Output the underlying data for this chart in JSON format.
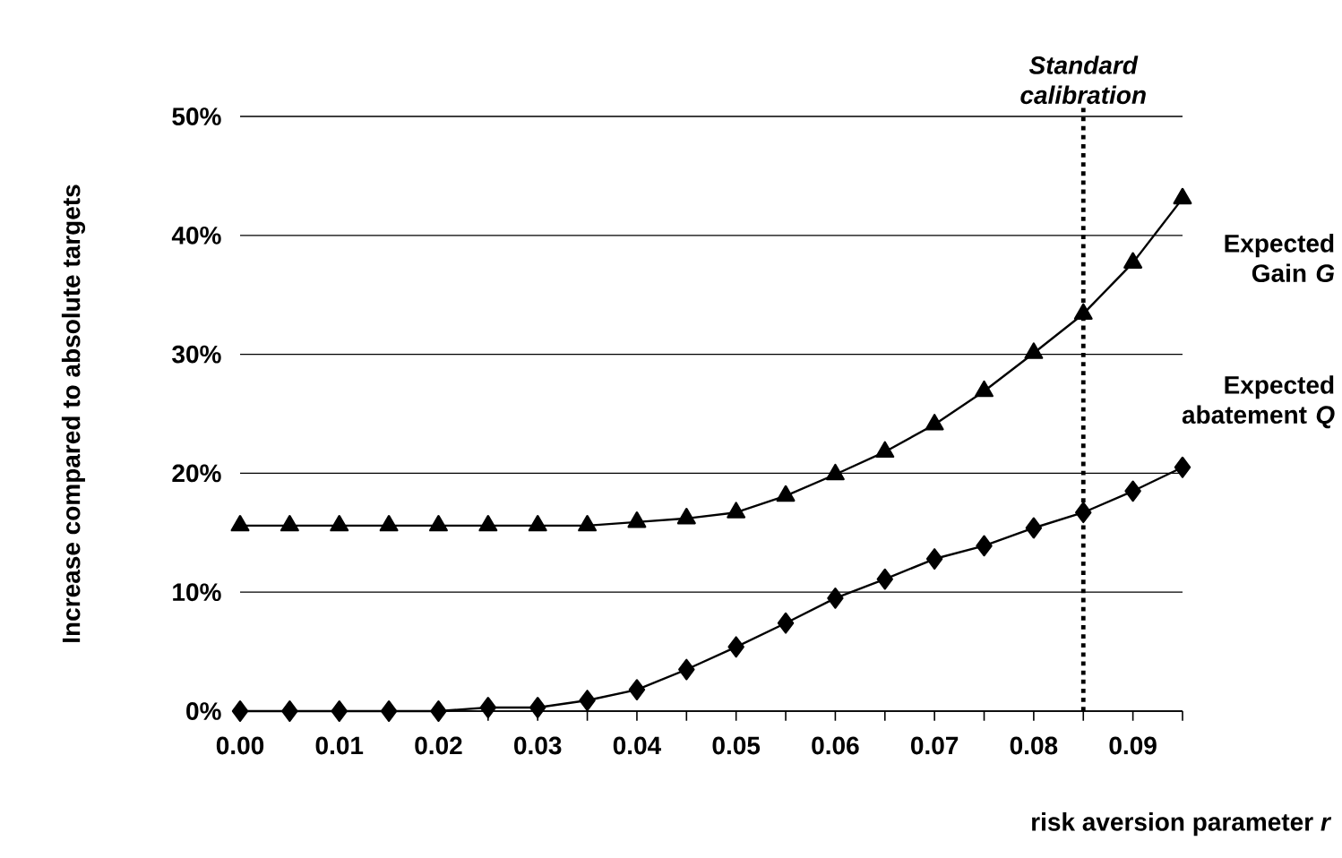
{
  "chart_data": {
    "type": "line",
    "xlabel": "risk aversion parameter *r*",
    "ylabel": "Increase compared to absolute targets",
    "x": [
      0,
      0.005,
      0.01,
      0.015,
      0.02,
      0.025,
      0.03,
      0.035,
      0.04,
      0.045,
      0.05,
      0.055,
      0.06,
      0.065,
      0.07,
      0.075,
      0.08,
      0.085,
      0.09,
      0.095
    ],
    "series": [
      {
        "name": "Expected Gain *G*",
        "color": "#000000",
        "marker": "triangle",
        "values": [
          15.6,
          15.6,
          15.6,
          15.6,
          15.6,
          15.6,
          15.6,
          15.6,
          15.9,
          16.2,
          16.7,
          18.1,
          19.9,
          21.8,
          24.1,
          26.9,
          30.1,
          33.4,
          37.7,
          43.1
        ]
      },
      {
        "name": "Expected abatement *Q*",
        "color": "#000000",
        "marker": "diamond",
        "values": [
          0,
          0,
          0,
          0,
          0,
          0.3,
          0.3,
          0.9,
          1.8,
          3.5,
          5.4,
          7.4,
          9.5,
          11.1,
          12.8,
          13.9,
          15.4,
          16.7,
          18.5,
          20.5
        ]
      }
    ],
    "xlim": [
      0,
      0.095
    ],
    "xticks": [
      {
        "value": 0,
        "label": "0.00"
      },
      {
        "value": 0.005,
        "label": null
      },
      {
        "value": 0.01,
        "label": "0.01"
      },
      {
        "value": 0.015,
        "label": null
      },
      {
        "value": 0.02,
        "label": "0.02"
      },
      {
        "value": 0.025,
        "label": null
      },
      {
        "value": 0.03,
        "label": "0.03"
      },
      {
        "value": 0.035,
        "label": null
      },
      {
        "value": 0.04,
        "label": "0.04"
      },
      {
        "value": 0.045,
        "label": null
      },
      {
        "value": 0.05,
        "label": "0.05"
      },
      {
        "value": 0.055,
        "label": null
      },
      {
        "value": 0.06,
        "label": "0.06"
      },
      {
        "value": 0.065,
        "label": null
      },
      {
        "value": 0.07,
        "label": "0.07"
      },
      {
        "value": 0.075,
        "label": null
      },
      {
        "value": 0.08,
        "label": "0.08"
      },
      {
        "value": 0.085,
        "label": null
      },
      {
        "value": 0.09,
        "label": "0.09"
      },
      {
        "value": 0.095,
        "label": null
      }
    ],
    "ylim": [
      0,
      50
    ],
    "yticks": [
      {
        "value": 0,
        "label": "0%"
      },
      {
        "value": 10,
        "label": "10%"
      },
      {
        "value": 20,
        "label": "20%"
      },
      {
        "value": 30,
        "label": "30%"
      },
      {
        "value": 40,
        "label": "40%"
      },
      {
        "value": 50,
        "label": "50%"
      }
    ],
    "grid": "y",
    "line_style": "solid",
    "ref_lines": [
      {
        "axis": "x",
        "value": 0.085,
        "label": "Standard calibration",
        "line_style": "dotted",
        "color": "#000000"
      }
    ]
  }
}
